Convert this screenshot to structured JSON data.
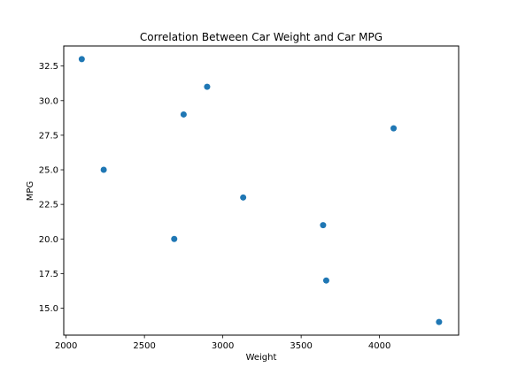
{
  "chart_data": {
    "type": "scatter",
    "title": "Correlation Between Car Weight and Car MPG",
    "xlabel": "Weight",
    "ylabel": "MPG",
    "xlim": [
      1985,
      4505
    ],
    "ylim": [
      13.05,
      33.95
    ],
    "xticks": [
      2000,
      2500,
      3000,
      3500,
      4000
    ],
    "xtick_labels": [
      "2000",
      "2500",
      "3000",
      "3500",
      "4000"
    ],
    "yticks": [
      15.0,
      17.5,
      20.0,
      22.5,
      25.0,
      27.5,
      30.0,
      32.5
    ],
    "ytick_labels": [
      "15.0",
      "17.5",
      "20.0",
      "22.5",
      "25.0",
      "27.5",
      "30.0",
      "32.5"
    ],
    "grid": false,
    "marker_color": "#1f77b4",
    "points": [
      {
        "x": 2100,
        "y": 33
      },
      {
        "x": 2240,
        "y": 25
      },
      {
        "x": 2690,
        "y": 20
      },
      {
        "x": 2750,
        "y": 29
      },
      {
        "x": 2900,
        "y": 31
      },
      {
        "x": 3130,
        "y": 23
      },
      {
        "x": 3640,
        "y": 21
      },
      {
        "x": 3660,
        "y": 17
      },
      {
        "x": 4090,
        "y": 28
      },
      {
        "x": 4380,
        "y": 14
      }
    ]
  }
}
